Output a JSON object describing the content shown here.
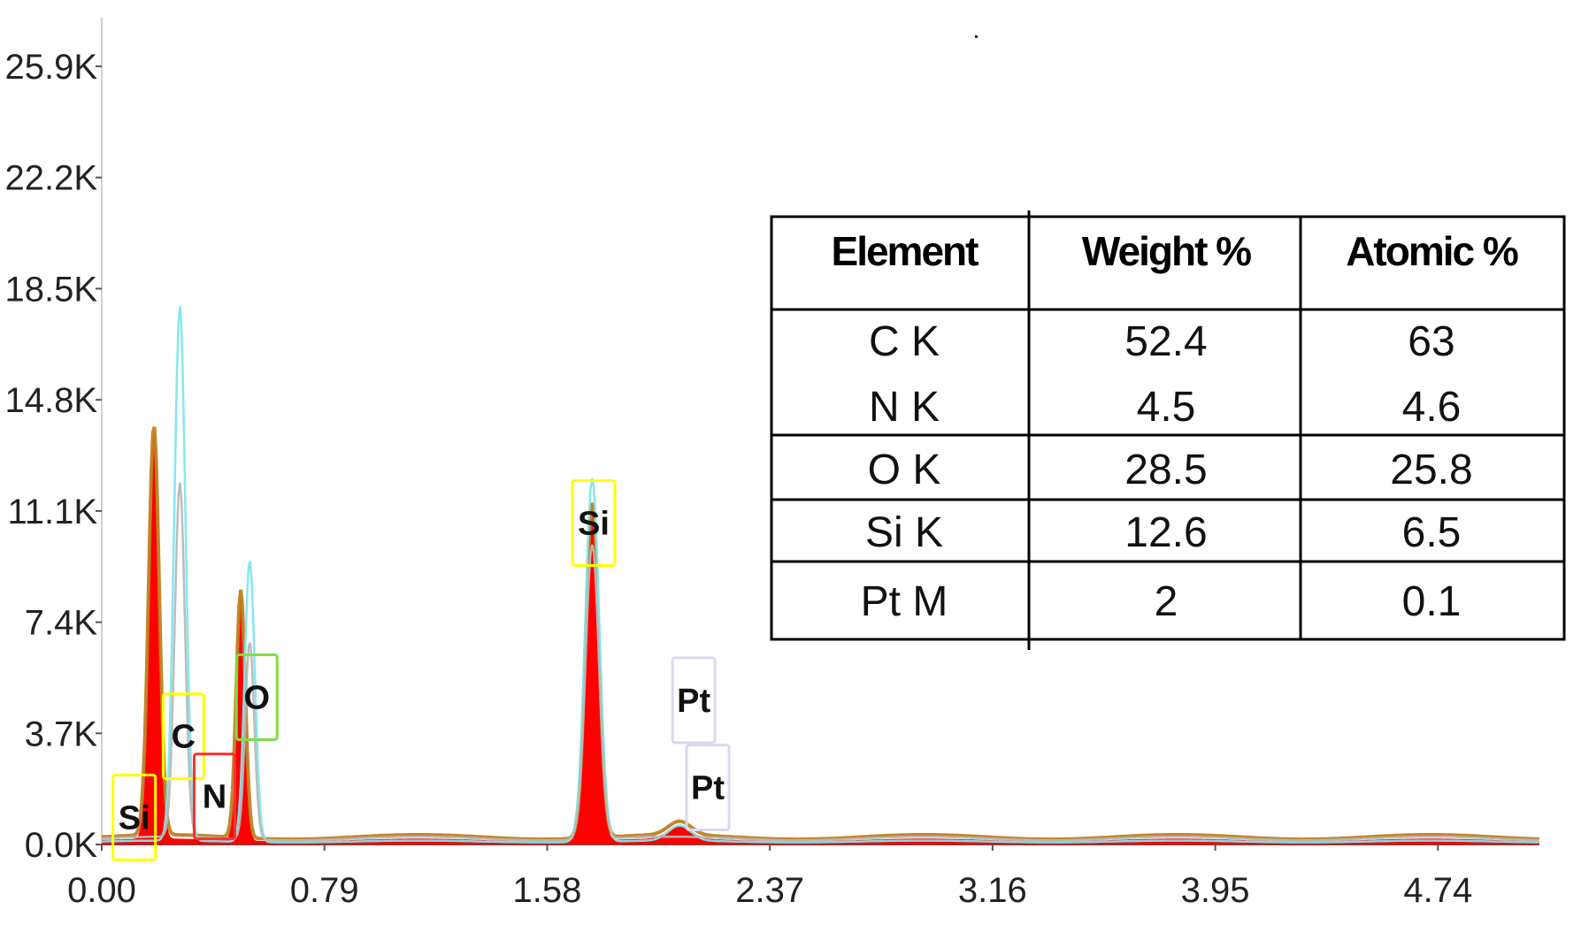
{
  "chart_data": {
    "type": "area",
    "title": "",
    "xlabel": "",
    "ylabel": "",
    "xlim": [
      0,
      5.1
    ],
    "ylim": [
      0,
      25900
    ],
    "x_ticks": [
      "0.00",
      "0.79",
      "1.58",
      "2.37",
      "3.16",
      "3.95",
      "4.74"
    ],
    "y_ticks": [
      "0.0K",
      "3.7K",
      "7.4K",
      "11.1K",
      "14.8K",
      "18.5K",
      "22.2K",
      "25.9K"
    ],
    "x_tick_values": [
      0,
      0.79,
      1.58,
      2.37,
      3.16,
      3.95,
      4.74
    ],
    "y_tick_values": [
      0,
      3700,
      7400,
      11100,
      14800,
      18500,
      22200,
      25900
    ],
    "series": [
      {
        "role": "measured-fill",
        "color": "#ff0000",
        "baseline": 150,
        "peaks": [
          {
            "x": 0.185,
            "y": 13800,
            "width": 0.018
          },
          {
            "x": 0.39,
            "y": 100,
            "width": 0.015
          },
          {
            "x": 0.493,
            "y": 8400,
            "width": 0.015
          },
          {
            "x": 1.74,
            "y": 11300,
            "width": 0.022
          },
          {
            "x": 2.05,
            "y": 600,
            "width": 0.04
          }
        ]
      },
      {
        "role": "fit-outline",
        "color": "#c08020",
        "baseline": 250,
        "peaks": [
          {
            "x": 0.185,
            "y": 13900,
            "width": 0.019
          },
          {
            "x": 0.493,
            "y": 8500,
            "width": 0.016
          },
          {
            "x": 1.74,
            "y": 11400,
            "width": 0.023
          },
          {
            "x": 2.05,
            "y": 700,
            "width": 0.04
          }
        ]
      },
      {
        "role": "reference",
        "color": "#7fe6ee",
        "baseline": 100,
        "peaks": [
          {
            "x": 0.277,
            "y": 17900,
            "width": 0.02
          },
          {
            "x": 0.525,
            "y": 9500,
            "width": 0.018
          },
          {
            "x": 1.74,
            "y": 12200,
            "width": 0.025
          },
          {
            "x": 2.05,
            "y": 600,
            "width": 0.04
          }
        ]
      },
      {
        "role": "reference-2",
        "color": "#b8b8b8",
        "baseline": 200,
        "peaks": [
          {
            "x": 0.277,
            "y": 12000,
            "width": 0.018
          },
          {
            "x": 0.525,
            "y": 6800,
            "width": 0.016
          },
          {
            "x": 1.74,
            "y": 10000,
            "width": 0.024
          }
        ]
      }
    ],
    "peak_labels": [
      {
        "text": "Si",
        "x": 0.115,
        "y": 900,
        "box_color": "#ffff00"
      },
      {
        "text": "C",
        "x": 0.29,
        "y": 3600,
        "box_color": "#ffff00"
      },
      {
        "text": "N",
        "x": 0.4,
        "y": 1600,
        "box_color": "#ff3030"
      },
      {
        "text": "O",
        "x": 0.55,
        "y": 4900,
        "box_color": "#80dd40"
      },
      {
        "text": "Si",
        "x": 1.745,
        "y": 10700,
        "box_color": "#ffff00"
      },
      {
        "text": "Pt",
        "x": 2.1,
        "y": 4800,
        "box_color": "#d8d8f0"
      },
      {
        "text": "Pt",
        "x": 2.15,
        "y": 1900,
        "box_color": "#d8d8f0"
      }
    ]
  },
  "table": {
    "headers": [
      "Element",
      "Weight %",
      "Atomic %"
    ],
    "rows": [
      [
        "C K",
        "52.4",
        "63"
      ],
      [
        "N K",
        "4.5",
        "4.6"
      ],
      [
        "O K",
        "28.5",
        "25.8"
      ],
      [
        "Si K",
        "12.6",
        "6.5"
      ],
      [
        "Pt M",
        "2",
        "0.1"
      ]
    ]
  }
}
